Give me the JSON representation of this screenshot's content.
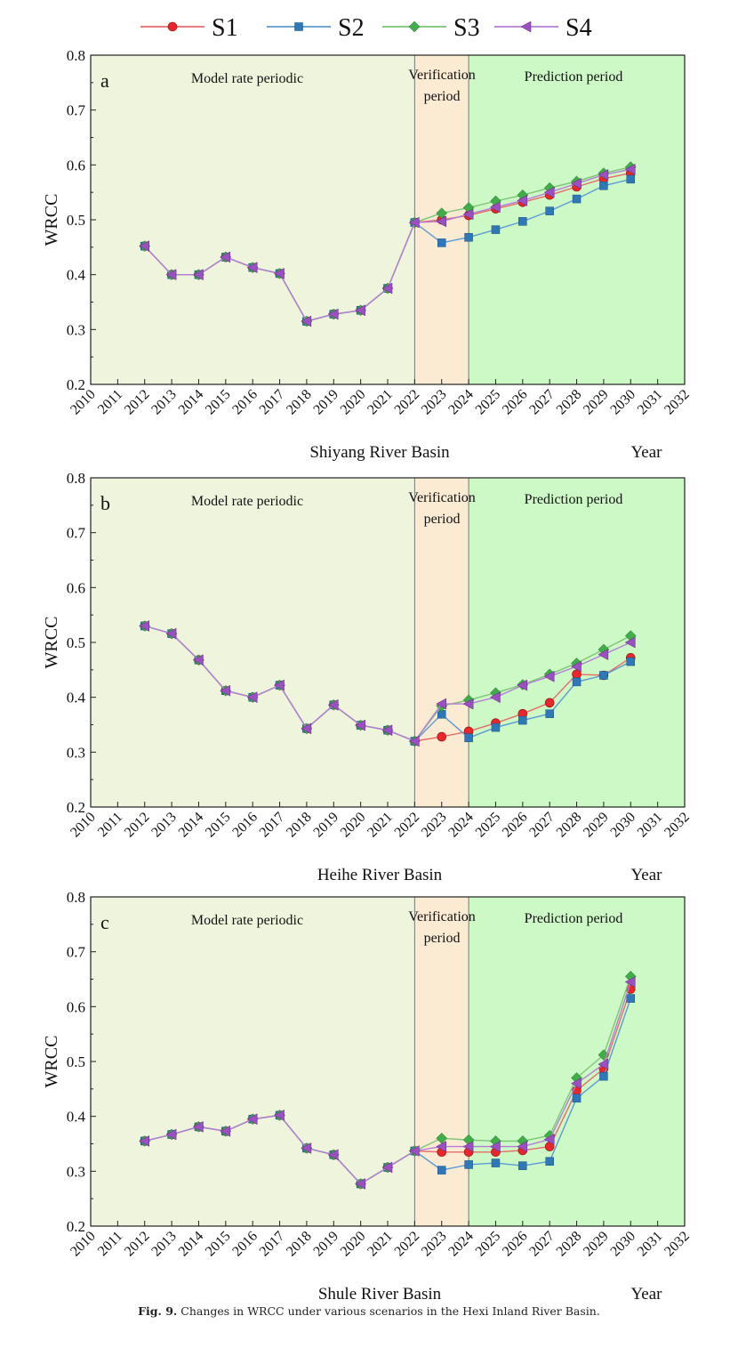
{
  "legend": [
    {
      "name": "S1",
      "color": "#e8262b",
      "line": "#e86a6a",
      "marker": "circle"
    },
    {
      "name": "S2",
      "color": "#2f78b8",
      "line": "#5b9bd5",
      "marker": "square"
    },
    {
      "name": "S3",
      "color": "#3fae49",
      "line": "#7cc576",
      "marker": "diamond"
    },
    {
      "name": "S4",
      "color": "#9b4fc2",
      "line": "#b57ed6",
      "marker": "triangle-left"
    }
  ],
  "periods": {
    "model": "Model rate periodic",
    "verification_line1": "Verification",
    "verification_line2": "period",
    "prediction": "Prediction period",
    "colors": {
      "model": "#eef5dc",
      "verification": "#fbebd2",
      "prediction": "#cdf9c6"
    }
  },
  "caption": {
    "label": "Fig. 9.",
    "text": "Changes in WRCC under various scenarios in the Hexi Inland River Basin."
  },
  "chart_data": [
    {
      "type": "line",
      "panel": "a",
      "title": "Shiyang River Basin",
      "xlabel": "Year",
      "ylabel": "WRCC",
      "ylim": [
        0.2,
        0.8
      ],
      "xlim": [
        2010,
        2032
      ],
      "x_ticks": [
        "2010",
        "2011",
        "2012",
        "2013",
        "2014",
        "2015",
        "2016",
        "2017",
        "2018",
        "2019",
        "2020",
        "2021",
        "2022",
        "2023",
        "2024",
        "2025",
        "2026",
        "2027",
        "2028",
        "2029",
        "2030",
        "2031",
        "2032"
      ],
      "y_ticks": [
        "0.2",
        "0.3",
        "0.4",
        "0.5",
        "0.6",
        "0.7",
        "0.8"
      ],
      "period_bounds": [
        2010,
        2022,
        2024,
        2032
      ],
      "series": [
        {
          "name": "S1",
          "x": [
            2012,
            2013,
            2014,
            2015,
            2016,
            2017,
            2018,
            2019,
            2020,
            2021,
            2022,
            2023,
            2024,
            2025,
            2026,
            2027,
            2028,
            2029,
            2030
          ],
          "values": [
            0.452,
            0.4,
            0.4,
            0.432,
            0.413,
            0.402,
            0.315,
            0.328,
            0.335,
            0.375,
            0.495,
            0.5,
            0.508,
            0.52,
            0.532,
            0.545,
            0.56,
            0.575,
            0.585
          ]
        },
        {
          "name": "S2",
          "x": [
            2012,
            2013,
            2014,
            2015,
            2016,
            2017,
            2018,
            2019,
            2020,
            2021,
            2022,
            2023,
            2024,
            2025,
            2026,
            2027,
            2028,
            2029,
            2030
          ],
          "values": [
            0.452,
            0.4,
            0.4,
            0.432,
            0.413,
            0.402,
            0.315,
            0.328,
            0.335,
            0.375,
            0.495,
            0.458,
            0.468,
            0.482,
            0.497,
            0.516,
            0.538,
            0.562,
            0.574
          ]
        },
        {
          "name": "S3",
          "x": [
            2012,
            2013,
            2014,
            2015,
            2016,
            2017,
            2018,
            2019,
            2020,
            2021,
            2022,
            2023,
            2024,
            2025,
            2026,
            2027,
            2028,
            2029,
            2030
          ],
          "values": [
            0.452,
            0.4,
            0.4,
            0.432,
            0.413,
            0.402,
            0.315,
            0.328,
            0.335,
            0.375,
            0.495,
            0.512,
            0.522,
            0.534,
            0.545,
            0.558,
            0.57,
            0.585,
            0.596
          ]
        },
        {
          "name": "S4",
          "x": [
            2012,
            2013,
            2014,
            2015,
            2016,
            2017,
            2018,
            2019,
            2020,
            2021,
            2022,
            2023,
            2024,
            2025,
            2026,
            2027,
            2028,
            2029,
            2030
          ],
          "values": [
            0.452,
            0.4,
            0.4,
            0.432,
            0.413,
            0.402,
            0.315,
            0.328,
            0.335,
            0.375,
            0.495,
            0.497,
            0.51,
            0.523,
            0.535,
            0.55,
            0.566,
            0.582,
            0.592
          ]
        }
      ]
    },
    {
      "type": "line",
      "panel": "b",
      "title": "Heihe River Basin",
      "xlabel": "Year",
      "ylabel": "WRCC",
      "ylim": [
        0.2,
        0.8
      ],
      "xlim": [
        2010,
        2032
      ],
      "x_ticks": [
        "2010",
        "2011",
        "2012",
        "2013",
        "2014",
        "2015",
        "2016",
        "2017",
        "2018",
        "2019",
        "2020",
        "2021",
        "2022",
        "2023",
        "2024",
        "2025",
        "2026",
        "2027",
        "2028",
        "2029",
        "2030",
        "2031",
        "2032"
      ],
      "y_ticks": [
        "0.2",
        "0.3",
        "0.4",
        "0.5",
        "0.6",
        "0.7",
        "0.8"
      ],
      "period_bounds": [
        2010,
        2022,
        2024,
        2032
      ],
      "series": [
        {
          "name": "S1",
          "x": [
            2012,
            2013,
            2014,
            2015,
            2016,
            2017,
            2018,
            2019,
            2020,
            2021,
            2022,
            2023,
            2024,
            2025,
            2026,
            2027,
            2028,
            2029,
            2030
          ],
          "values": [
            0.53,
            0.516,
            0.468,
            0.412,
            0.4,
            0.422,
            0.343,
            0.386,
            0.349,
            0.34,
            0.32,
            0.328,
            0.338,
            0.353,
            0.37,
            0.39,
            0.442,
            0.44,
            0.472
          ]
        },
        {
          "name": "S2",
          "x": [
            2012,
            2013,
            2014,
            2015,
            2016,
            2017,
            2018,
            2019,
            2020,
            2021,
            2022,
            2023,
            2024,
            2025,
            2026,
            2027,
            2028,
            2029,
            2030
          ],
          "values": [
            0.53,
            0.516,
            0.468,
            0.412,
            0.4,
            0.422,
            0.343,
            0.386,
            0.349,
            0.34,
            0.32,
            0.369,
            0.326,
            0.345,
            0.358,
            0.37,
            0.428,
            0.44,
            0.465
          ]
        },
        {
          "name": "S3",
          "x": [
            2012,
            2013,
            2014,
            2015,
            2016,
            2017,
            2018,
            2019,
            2020,
            2021,
            2022,
            2023,
            2024,
            2025,
            2026,
            2027,
            2028,
            2029,
            2030
          ],
          "values": [
            0.53,
            0.516,
            0.468,
            0.412,
            0.4,
            0.422,
            0.343,
            0.386,
            0.349,
            0.34,
            0.32,
            0.384,
            0.395,
            0.408,
            0.423,
            0.442,
            0.462,
            0.487,
            0.512
          ]
        },
        {
          "name": "S4",
          "x": [
            2012,
            2013,
            2014,
            2015,
            2016,
            2017,
            2018,
            2019,
            2020,
            2021,
            2022,
            2023,
            2024,
            2025,
            2026,
            2027,
            2028,
            2029,
            2030
          ],
          "values": [
            0.53,
            0.516,
            0.468,
            0.412,
            0.4,
            0.422,
            0.343,
            0.386,
            0.349,
            0.34,
            0.32,
            0.388,
            0.388,
            0.4,
            0.422,
            0.438,
            0.456,
            0.478,
            0.5
          ]
        }
      ]
    },
    {
      "type": "line",
      "panel": "c",
      "title": "Shule River Basin",
      "xlabel": "Year",
      "ylabel": "WRCC",
      "ylim": [
        0.2,
        0.8
      ],
      "xlim": [
        2010,
        2032
      ],
      "x_ticks": [
        "2010",
        "2011",
        "2012",
        "2013",
        "2014",
        "2015",
        "2016",
        "2017",
        "2018",
        "2019",
        "2020",
        "2021",
        "2022",
        "2023",
        "2024",
        "2025",
        "2026",
        "2027",
        "2028",
        "2029",
        "2030",
        "2031",
        "2032"
      ],
      "y_ticks": [
        "0.2",
        "0.3",
        "0.4",
        "0.5",
        "0.6",
        "0.7",
        "0.8"
      ],
      "period_bounds": [
        2010,
        2022,
        2024,
        2032
      ],
      "series": [
        {
          "name": "S1",
          "x": [
            2012,
            2013,
            2014,
            2015,
            2016,
            2017,
            2018,
            2019,
            2020,
            2021,
            2022,
            2023,
            2024,
            2025,
            2026,
            2027,
            2028,
            2029,
            2030
          ],
          "values": [
            0.355,
            0.367,
            0.381,
            0.373,
            0.395,
            0.402,
            0.342,
            0.33,
            0.277,
            0.307,
            0.337,
            0.335,
            0.335,
            0.335,
            0.338,
            0.345,
            0.447,
            0.487,
            0.632
          ]
        },
        {
          "name": "S2",
          "x": [
            2012,
            2013,
            2014,
            2015,
            2016,
            2017,
            2018,
            2019,
            2020,
            2021,
            2022,
            2023,
            2024,
            2025,
            2026,
            2027,
            2028,
            2029,
            2030
          ],
          "values": [
            0.355,
            0.367,
            0.381,
            0.373,
            0.395,
            0.402,
            0.342,
            0.33,
            0.277,
            0.307,
            0.337,
            0.302,
            0.312,
            0.315,
            0.31,
            0.318,
            0.433,
            0.473,
            0.615
          ]
        },
        {
          "name": "S3",
          "x": [
            2012,
            2013,
            2014,
            2015,
            2016,
            2017,
            2018,
            2019,
            2020,
            2021,
            2022,
            2023,
            2024,
            2025,
            2026,
            2027,
            2028,
            2029,
            2030
          ],
          "values": [
            0.355,
            0.367,
            0.381,
            0.373,
            0.395,
            0.402,
            0.342,
            0.33,
            0.277,
            0.307,
            0.337,
            0.36,
            0.357,
            0.355,
            0.355,
            0.365,
            0.47,
            0.512,
            0.655
          ]
        },
        {
          "name": "S4",
          "x": [
            2012,
            2013,
            2014,
            2015,
            2016,
            2017,
            2018,
            2019,
            2020,
            2021,
            2022,
            2023,
            2024,
            2025,
            2026,
            2027,
            2028,
            2029,
            2030
          ],
          "values": [
            0.355,
            0.367,
            0.381,
            0.373,
            0.395,
            0.402,
            0.342,
            0.33,
            0.277,
            0.307,
            0.337,
            0.345,
            0.345,
            0.345,
            0.345,
            0.358,
            0.46,
            0.495,
            0.645
          ]
        }
      ]
    }
  ]
}
